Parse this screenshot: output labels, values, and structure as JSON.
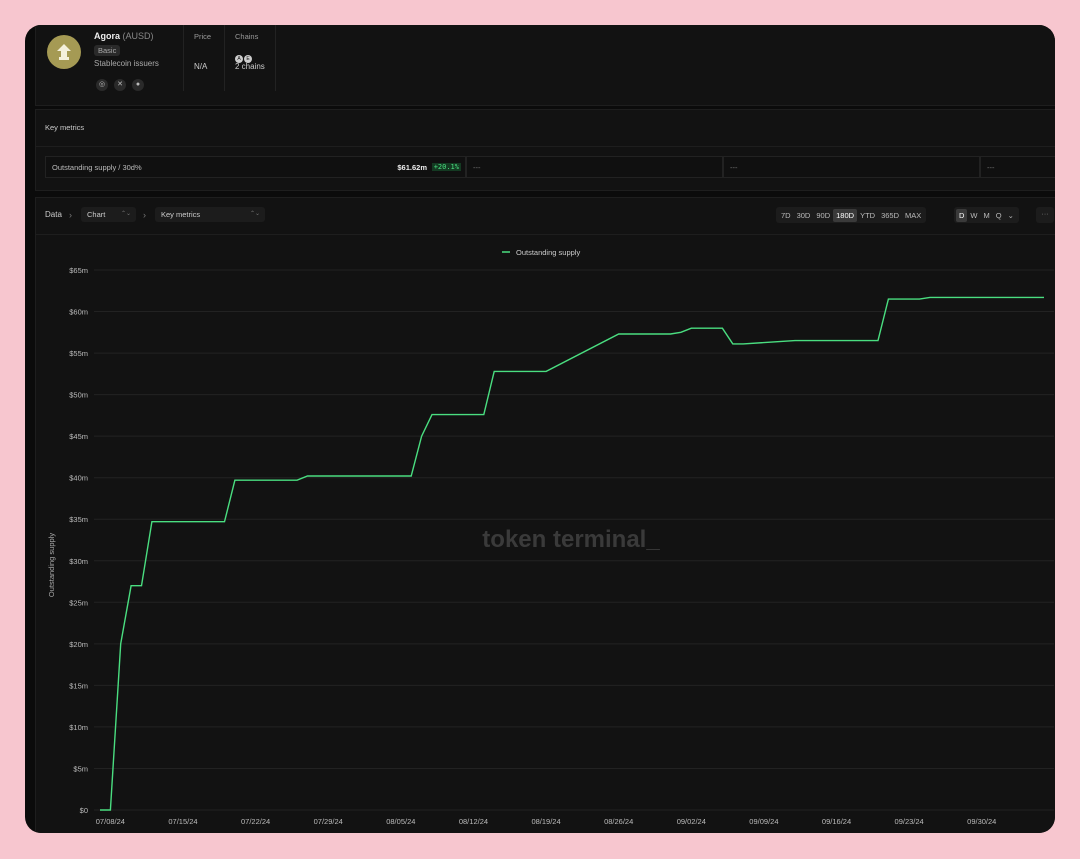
{
  "project": {
    "name": "Agora",
    "ticker": "(AUSD)",
    "plan": "Basic",
    "category": "Stablecoin issuers",
    "socials": [
      "website-icon",
      "twitter-icon",
      "github-icon"
    ]
  },
  "header_cols": {
    "price_label": "Price",
    "price_value": "N/A",
    "chains_label": "Chains",
    "chains_value": "2 chains",
    "chain_icons": [
      "A",
      "E"
    ]
  },
  "metrics": {
    "title": "Key metrics",
    "row": {
      "label": "Outstanding supply / 30d%",
      "value": "$61.62m",
      "change": "+20.1%",
      "placeholders": [
        "---",
        "---",
        "---"
      ]
    }
  },
  "toolbar": {
    "crumb": "Data",
    "chart_select": "Chart",
    "metric_select": "Key metrics",
    "ranges": [
      "7D",
      "30D",
      "90D",
      "180D",
      "YTD",
      "365D",
      "MAX"
    ],
    "active_range": "180D",
    "granularity": [
      "D",
      "W",
      "M",
      "Q"
    ],
    "active_granularity": "D",
    "more": "···"
  },
  "colors": {
    "line": "#4ade80",
    "grid": "#222222",
    "bg": "#0b0b0b"
  },
  "watermark": "token terminal_",
  "chart_data": {
    "type": "line",
    "ylabel": "Outstanding supply",
    "ylim": [
      0,
      65
    ],
    "y_ticks": [
      "$0",
      "$5m",
      "$10m",
      "$15m",
      "$20m",
      "$25m",
      "$30m",
      "$35m",
      "$40m",
      "$45m",
      "$50m",
      "$55m",
      "$60m",
      "$65m"
    ],
    "x_ticks": [
      "07/08/24",
      "07/15/24",
      "07/22/24",
      "07/29/24",
      "08/05/24",
      "08/12/24",
      "08/19/24",
      "08/26/24",
      "09/02/24",
      "09/09/24",
      "09/16/24",
      "09/23/24",
      "09/30/24"
    ],
    "legend": "top-center",
    "series": [
      {
        "name": "Outstanding supply",
        "x": [
          "07/07/24",
          "07/08/24",
          "07/09/24",
          "07/10/24",
          "07/11/24",
          "07/12/24",
          "07/13/24",
          "07/19/24",
          "07/20/24",
          "07/26/24",
          "07/27/24",
          "08/02/24",
          "08/03/24",
          "08/04/24",
          "08/05/24",
          "08/06/24",
          "08/07/24",
          "08/08/24",
          "08/09/24",
          "08/10/24",
          "08/11/24",
          "08/12/24",
          "08/13/24",
          "08/14/24",
          "08/15/24",
          "08/18/24",
          "08/19/24",
          "08/26/24",
          "08/27/24",
          "08/28/24",
          "08/31/24",
          "09/01/24",
          "09/02/24",
          "09/03/24",
          "09/04/24",
          "09/05/24",
          "09/06/24",
          "09/07/24",
          "09/12/24",
          "09/13/24",
          "09/14/24",
          "09/15/24",
          "09/16/24",
          "09/17/24",
          "09/18/24",
          "09/19/24",
          "09/20/24",
          "09/21/24",
          "09/22/24",
          "09/23/24",
          "09/24/24",
          "09/25/24",
          "09/26/24",
          "09/27/24",
          "10/06/24"
        ],
        "values": [
          0,
          0,
          20,
          27,
          27,
          34.7,
          34.7,
          34.7,
          39.7,
          39.7,
          40.2,
          40.2,
          40.2,
          40.2,
          40.2,
          40.2,
          45,
          47.6,
          47.6,
          47.6,
          47.6,
          47.6,
          47.6,
          52.8,
          52.8,
          52.8,
          52.8,
          57.3,
          57.3,
          57.3,
          57.3,
          57.5,
          58,
          58,
          58,
          58,
          56.1,
          56.1,
          56.5,
          56.5,
          56.5,
          56.5,
          56.5,
          56.5,
          56.5,
          56.5,
          56.5,
          61.5,
          61.5,
          61.5,
          61.5,
          61.7,
          61.7,
          61.7,
          61.7
        ]
      }
    ]
  }
}
